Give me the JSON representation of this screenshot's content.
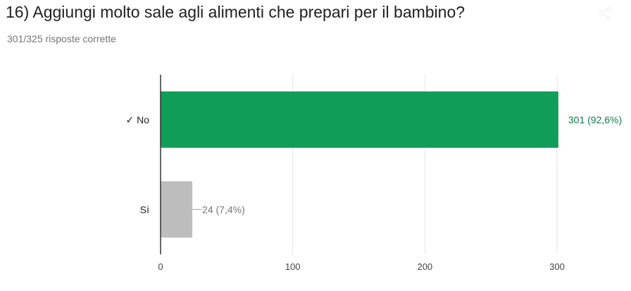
{
  "header": {
    "title": "16) Aggiungi molto sale agli alimenti che prepari per il bambino?",
    "subtitle": "301/325 risposte corrette",
    "share_icon": "share-icon"
  },
  "colors": {
    "correct": "#0f9d58",
    "other": "#bdbdbd",
    "correct_label": "#0f7a47",
    "other_label": "#757575",
    "grid": "#e6e6e6",
    "axis": "#333333",
    "tick": "#444444",
    "category": "#222222"
  },
  "chart_data": {
    "type": "bar",
    "orientation": "horizontal",
    "categories": [
      "✓ No",
      "Sì"
    ],
    "values": [
      301,
      24
    ],
    "data_labels": [
      "301 (92,6%)",
      "24 (7,4%)"
    ],
    "correct": [
      true,
      false
    ],
    "xlim": [
      0,
      300
    ],
    "xticks": [
      0,
      100,
      200,
      300
    ],
    "xtick_labels": [
      "0",
      "100",
      "200",
      "300"
    ],
    "grid": true,
    "xlabel": "",
    "ylabel": ""
  }
}
